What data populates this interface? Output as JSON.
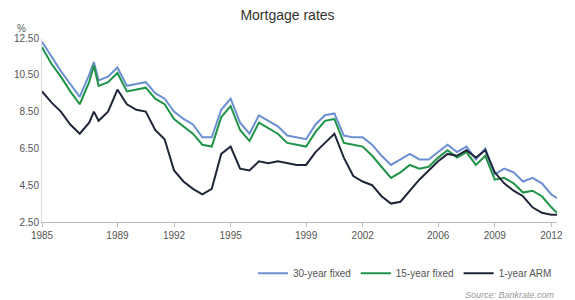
{
  "chart_data": {
    "type": "line",
    "title": "Mortgage rates",
    "ylabel": "%",
    "annotations": [
      "Source: Bankrate.com"
    ],
    "x": [
      1985,
      1985.5,
      1986,
      1986.5,
      1987,
      1987.5,
      1987.75,
      1988,
      1988.5,
      1989,
      1989.5,
      1990,
      1990.5,
      1991,
      1991.5,
      1992,
      1992.5,
      1993,
      1993.5,
      1994,
      1994.5,
      1995,
      1995.5,
      1996,
      1996.5,
      1997,
      1997.5,
      1998,
      1998.5,
      1999,
      1999.5,
      2000,
      2000.5,
      2001,
      2001.5,
      2002,
      2002.5,
      2003,
      2003.5,
      2004,
      2004.5,
      2005,
      2005.5,
      2006,
      2006.5,
      2007,
      2007.5,
      2008,
      2008.5,
      2009,
      2009.5,
      2010,
      2010.5,
      2011,
      2011.5,
      2012,
      2012.3
    ],
    "series": [
      {
        "name": "30-year fixed",
        "color": "#6b8fd1",
        "line_style": "solid",
        "values": [
          12.3,
          11.5,
          10.7,
          10.0,
          9.3,
          10.5,
          11.2,
          10.2,
          10.4,
          10.9,
          9.9,
          10.0,
          10.1,
          9.5,
          9.2,
          8.5,
          8.1,
          7.8,
          7.1,
          7.1,
          8.6,
          9.2,
          7.9,
          7.3,
          8.3,
          8.0,
          7.7,
          7.2,
          7.1,
          7.0,
          7.8,
          8.3,
          8.4,
          7.2,
          7.1,
          7.1,
          6.7,
          6.1,
          5.6,
          5.9,
          6.2,
          5.9,
          5.9,
          6.3,
          6.7,
          6.3,
          6.6,
          5.9,
          6.5,
          5.1,
          5.4,
          5.2,
          4.7,
          4.9,
          4.6,
          4.0,
          3.8
        ]
      },
      {
        "name": "15-year fixed",
        "color": "#1f9448",
        "line_style": "solid",
        "values": [
          12.0,
          11.1,
          10.4,
          9.6,
          8.9,
          10.1,
          11.0,
          9.9,
          10.1,
          10.6,
          9.6,
          9.7,
          9.8,
          9.2,
          8.9,
          8.1,
          7.7,
          7.3,
          6.7,
          6.6,
          8.2,
          8.8,
          7.5,
          6.9,
          7.9,
          7.6,
          7.3,
          6.8,
          6.7,
          6.6,
          7.4,
          8.0,
          8.1,
          6.8,
          6.7,
          6.6,
          6.1,
          5.5,
          4.9,
          5.2,
          5.6,
          5.4,
          5.5,
          6.0,
          6.4,
          6.0,
          6.3,
          5.6,
          6.1,
          4.8,
          4.9,
          4.6,
          4.1,
          4.2,
          3.9,
          3.3,
          3.0
        ]
      },
      {
        "name": "1-year ARM",
        "color": "#1e2638",
        "line_style": "solid",
        "values": [
          9.6,
          9.0,
          8.5,
          7.8,
          7.3,
          7.9,
          8.5,
          8.0,
          8.5,
          9.7,
          8.9,
          8.6,
          8.5,
          7.5,
          7.0,
          5.3,
          4.7,
          4.3,
          4.0,
          4.3,
          6.2,
          6.6,
          5.4,
          5.3,
          5.8,
          5.7,
          5.8,
          5.7,
          5.6,
          5.6,
          6.3,
          6.8,
          7.3,
          6.0,
          5.0,
          4.7,
          4.5,
          3.9,
          3.5,
          3.6,
          4.2,
          4.8,
          5.3,
          5.8,
          6.2,
          6.1,
          6.4,
          6.0,
          6.4,
          5.2,
          4.6,
          4.2,
          3.9,
          3.3,
          3.0,
          2.9,
          2.9
        ]
      }
    ],
    "xlim": [
      1985,
      2012.3
    ],
    "xticks": [
      1985,
      1989,
      1992,
      1995,
      1999,
      2002,
      2006,
      2009,
      2012
    ],
    "ylim": [
      2.5,
      12.5
    ],
    "yticks": [
      {
        "value": 2.5,
        "label": "2.50"
      },
      {
        "value": 4.5,
        "label": "4.50"
      },
      {
        "value": 6.5,
        "label": "6.50"
      },
      {
        "value": 8.5,
        "label": "8.50"
      },
      {
        "value": 10.5,
        "label": "10.50"
      },
      {
        "value": 12.5,
        "label": "12.50"
      }
    ],
    "grid": false,
    "legend": "bottom right"
  }
}
